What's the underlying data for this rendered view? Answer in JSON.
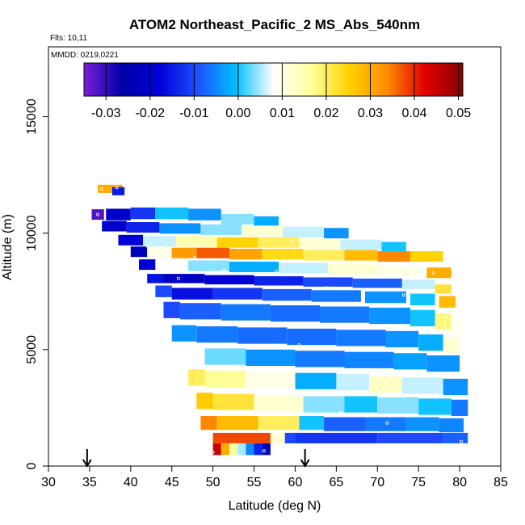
{
  "chart_data": {
    "type": "heatmap",
    "title": "ATOM2 Northeast_Pacific_2 MS_Abs_540nm",
    "flights_text": "Flts: 10,11",
    "date_text": "MMDD: 0219,0221",
    "xlabel": "Latitude (deg N)",
    "ylabel": "Altitude (m)",
    "xlim": [
      30,
      85
    ],
    "ylim": [
      0,
      18000
    ],
    "x_ticks": [
      "30",
      "35",
      "40",
      "45",
      "50",
      "55",
      "60",
      "65",
      "70",
      "75",
      "80",
      "85"
    ],
    "y_ticks": [
      "0",
      "5000",
      "10000",
      "15000"
    ],
    "colorbar": {
      "range": [
        -0.035,
        0.051
      ],
      "ticks": [
        "-0.03",
        "-0.02",
        "-0.01",
        "0.00",
        "0.01",
        "0.02",
        "0.03",
        "0.04",
        "0.05"
      ],
      "colors": [
        "#7a1fd6",
        "#0000a8",
        "#0000d8",
        "#1e50ff",
        "#00bfff",
        "#ffffff",
        "#ffff9c",
        "#ffd200",
        "#ff8c00",
        "#e10000",
        "#8b0000"
      ]
    },
    "arrows_latitude": [
      34.7,
      61.2
    ],
    "profile_top_edge": [
      [
        36.5,
        12000
      ],
      [
        39.5,
        11800
      ],
      [
        41,
        10900
      ],
      [
        48,
        10900
      ],
      [
        58,
        10400
      ],
      [
        68,
        10000
      ],
      [
        74,
        9700
      ],
      [
        79,
        9500
      ]
    ],
    "profile_bottom_edge": [
      [
        36.5,
        10800
      ],
      [
        42,
        7500
      ],
      [
        45,
        5500
      ],
      [
        48,
        3500
      ],
      [
        50,
        1800
      ],
      [
        50,
        600
      ],
      [
        57,
        600
      ],
      [
        57,
        1000
      ],
      [
        80.5,
        1000
      ]
    ],
    "cells": [
      {
        "lat": 37.5,
        "alt": 11900,
        "w": 3,
        "h": 350,
        "value": 0.03
      },
      {
        "lat": 38.5,
        "alt": 11800,
        "w": 1.5,
        "h": 350,
        "value": -0.015
      },
      {
        "lat": 36.0,
        "alt": 10800,
        "w": 1.5,
        "h": 450,
        "value": -0.032
      },
      {
        "lat": 38.5,
        "alt": 10800,
        "w": 3,
        "h": 500,
        "value": -0.02
      },
      {
        "lat": 41.5,
        "alt": 10850,
        "w": 3,
        "h": 500,
        "value": -0.012
      },
      {
        "lat": 45.0,
        "alt": 10850,
        "w": 4,
        "h": 500,
        "value": 0.0
      },
      {
        "lat": 49.0,
        "alt": 10800,
        "w": 4,
        "h": 500,
        "value": -0.004
      },
      {
        "lat": 53.0,
        "alt": 10600,
        "w": 4,
        "h": 450,
        "value": 0.004
      },
      {
        "lat": 56.5,
        "alt": 10500,
        "w": 3,
        "h": 450,
        "value": -0.002
      },
      {
        "lat": 38.0,
        "alt": 10300,
        "w": 3,
        "h": 450,
        "value": -0.02
      },
      {
        "lat": 41.5,
        "alt": 10250,
        "w": 4,
        "h": 450,
        "value": -0.014
      },
      {
        "lat": 46.0,
        "alt": 10200,
        "w": 5,
        "h": 450,
        "value": -0.004
      },
      {
        "lat": 51.0,
        "alt": 10150,
        "w": 5,
        "h": 450,
        "value": 0.004
      },
      {
        "lat": 56.0,
        "alt": 10100,
        "w": 5,
        "h": 450,
        "value": 0.012
      },
      {
        "lat": 61.0,
        "alt": 10050,
        "w": 5,
        "h": 450,
        "value": 0.006
      },
      {
        "lat": 65.0,
        "alt": 10000,
        "w": 3,
        "h": 450,
        "value": -0.004
      },
      {
        "lat": 40.0,
        "alt": 9700,
        "w": 3,
        "h": 450,
        "value": -0.018
      },
      {
        "lat": 43.5,
        "alt": 9650,
        "w": 4,
        "h": 450,
        "value": 0.006
      },
      {
        "lat": 48.0,
        "alt": 9650,
        "w": 5,
        "h": 450,
        "value": 0.015
      },
      {
        "lat": 53.0,
        "alt": 9600,
        "w": 5,
        "h": 450,
        "value": 0.025
      },
      {
        "lat": 58.0,
        "alt": 9600,
        "w": 5,
        "h": 450,
        "value": 0.02
      },
      {
        "lat": 63.0,
        "alt": 9550,
        "w": 5,
        "h": 450,
        "value": 0.012
      },
      {
        "lat": 68.0,
        "alt": 9500,
        "w": 5,
        "h": 450,
        "value": 0.006
      },
      {
        "lat": 72.0,
        "alt": 9400,
        "w": 3,
        "h": 450,
        "value": 0.0
      },
      {
        "lat": 41.0,
        "alt": 9200,
        "w": 2,
        "h": 450,
        "value": -0.022
      },
      {
        "lat": 43.5,
        "alt": 9200,
        "w": 3,
        "h": 450,
        "value": 0.01
      },
      {
        "lat": 46.5,
        "alt": 9150,
        "w": 3,
        "h": 450,
        "value": 0.032
      },
      {
        "lat": 50.0,
        "alt": 9150,
        "w": 4,
        "h": 450,
        "value": 0.037
      },
      {
        "lat": 54.0,
        "alt": 9100,
        "w": 4,
        "h": 450,
        "value": 0.031
      },
      {
        "lat": 58.5,
        "alt": 9100,
        "w": 5,
        "h": 450,
        "value": 0.024
      },
      {
        "lat": 63.5,
        "alt": 9050,
        "w": 5,
        "h": 450,
        "value": 0.02
      },
      {
        "lat": 68.0,
        "alt": 9050,
        "w": 4,
        "h": 450,
        "value": 0.028
      },
      {
        "lat": 72.0,
        "alt": 9000,
        "w": 4,
        "h": 450,
        "value": 0.034
      },
      {
        "lat": 76.0,
        "alt": 9000,
        "w": 4,
        "h": 450,
        "value": 0.025
      },
      {
        "lat": 42.0,
        "alt": 8650,
        "w": 2,
        "h": 450,
        "value": -0.018
      },
      {
        "lat": 45.0,
        "alt": 8650,
        "w": 4,
        "h": 450,
        "value": 0.008
      },
      {
        "lat": 49.5,
        "alt": 8600,
        "w": 5,
        "h": 450,
        "value": 0.004
      },
      {
        "lat": 55.0,
        "alt": 8550,
        "w": 6,
        "h": 450,
        "value": -0.002
      },
      {
        "lat": 61.0,
        "alt": 8500,
        "w": 6,
        "h": 450,
        "value": 0.006
      },
      {
        "lat": 67.0,
        "alt": 8450,
        "w": 6,
        "h": 450,
        "value": 0.012
      },
      {
        "lat": 72.5,
        "alt": 8400,
        "w": 5,
        "h": 450,
        "value": 0.01
      },
      {
        "lat": 77.5,
        "alt": 8300,
        "w": 3,
        "h": 450,
        "value": 0.03
      },
      {
        "lat": 43.0,
        "alt": 8050,
        "w": 2,
        "h": 400,
        "value": -0.016
      },
      {
        "lat": 46.5,
        "alt": 8050,
        "w": 5,
        "h": 400,
        "value": -0.022
      },
      {
        "lat": 52.0,
        "alt": 8000,
        "w": 6,
        "h": 400,
        "value": -0.018
      },
      {
        "lat": 58.0,
        "alt": 7950,
        "w": 6,
        "h": 400,
        "value": -0.014
      },
      {
        "lat": 64.0,
        "alt": 7900,
        "w": 6,
        "h": 400,
        "value": -0.01
      },
      {
        "lat": 70.0,
        "alt": 7850,
        "w": 6,
        "h": 400,
        "value": -0.008
      },
      {
        "lat": 75.0,
        "alt": 7800,
        "w": 4,
        "h": 400,
        "value": 0.006
      },
      {
        "lat": 78.0,
        "alt": 7600,
        "w": 2,
        "h": 400,
        "value": 0.022
      },
      {
        "lat": 44.0,
        "alt": 7500,
        "w": 2,
        "h": 500,
        "value": -0.01
      },
      {
        "lat": 47.5,
        "alt": 7400,
        "w": 5,
        "h": 500,
        "value": -0.016
      },
      {
        "lat": 53.0,
        "alt": 7400,
        "w": 6,
        "h": 500,
        "value": -0.012
      },
      {
        "lat": 59.0,
        "alt": 7350,
        "w": 6,
        "h": 500,
        "value": -0.008
      },
      {
        "lat": 65.0,
        "alt": 7300,
        "w": 6,
        "h": 500,
        "value": -0.006
      },
      {
        "lat": 71.0,
        "alt": 7250,
        "w": 5,
        "h": 500,
        "value": -0.004
      },
      {
        "lat": 75.5,
        "alt": 7150,
        "w": 3,
        "h": 500,
        "value": 0.0
      },
      {
        "lat": 78.5,
        "alt": 7050,
        "w": 2,
        "h": 500,
        "value": 0.028
      },
      {
        "lat": 45.0,
        "alt": 6700,
        "w": 2,
        "h": 700,
        "value": -0.01
      },
      {
        "lat": 48.5,
        "alt": 6650,
        "w": 5,
        "h": 700,
        "value": -0.008
      },
      {
        "lat": 54.0,
        "alt": 6600,
        "w": 6,
        "h": 700,
        "value": -0.006
      },
      {
        "lat": 60.0,
        "alt": 6550,
        "w": 6,
        "h": 700,
        "value": -0.007
      },
      {
        "lat": 66.0,
        "alt": 6500,
        "w": 6,
        "h": 700,
        "value": -0.006
      },
      {
        "lat": 71.5,
        "alt": 6450,
        "w": 5,
        "h": 700,
        "value": -0.004
      },
      {
        "lat": 75.5,
        "alt": 6350,
        "w": 3,
        "h": 700,
        "value": 0.0
      },
      {
        "lat": 78.0,
        "alt": 6200,
        "w": 2,
        "h": 700,
        "value": 0.018
      },
      {
        "lat": 79.8,
        "alt": 6000,
        "w": 1.5,
        "h": 800,
        "value": 0.009
      },
      {
        "lat": 46.5,
        "alt": 5700,
        "w": 3,
        "h": 700,
        "value": -0.004
      },
      {
        "lat": 50.5,
        "alt": 5650,
        "w": 5,
        "h": 700,
        "value": -0.006
      },
      {
        "lat": 56.0,
        "alt": 5600,
        "w": 6,
        "h": 700,
        "value": -0.007
      },
      {
        "lat": 62.0,
        "alt": 5550,
        "w": 6,
        "h": 700,
        "value": -0.007
      },
      {
        "lat": 68.0,
        "alt": 5500,
        "w": 6,
        "h": 700,
        "value": -0.006
      },
      {
        "lat": 73.0,
        "alt": 5450,
        "w": 4,
        "h": 700,
        "value": -0.004
      },
      {
        "lat": 76.5,
        "alt": 5300,
        "w": 3,
        "h": 700,
        "value": -0.002
      },
      {
        "lat": 79.0,
        "alt": 5200,
        "w": 2,
        "h": 700,
        "value": 0.012
      },
      {
        "lat": 47.5,
        "alt": 4800,
        "w": 3,
        "h": 700,
        "value": 0.008
      },
      {
        "lat": 51.5,
        "alt": 4700,
        "w": 5,
        "h": 700,
        "value": 0.003
      },
      {
        "lat": 57.0,
        "alt": 4650,
        "w": 6,
        "h": 700,
        "value": -0.004
      },
      {
        "lat": 63.0,
        "alt": 4600,
        "w": 6,
        "h": 700,
        "value": -0.006
      },
      {
        "lat": 69.0,
        "alt": 4550,
        "w": 6,
        "h": 700,
        "value": -0.005
      },
      {
        "lat": 74.0,
        "alt": 4500,
        "w": 4,
        "h": 700,
        "value": -0.003
      },
      {
        "lat": 78.0,
        "alt": 4400,
        "w": 4,
        "h": 700,
        "value": -0.004
      },
      {
        "lat": 48.0,
        "alt": 3800,
        "w": 2,
        "h": 700,
        "value": 0.02
      },
      {
        "lat": 51.5,
        "alt": 3750,
        "w": 5,
        "h": 700,
        "value": 0.017
      },
      {
        "lat": 57.0,
        "alt": 3700,
        "w": 6,
        "h": 700,
        "value": 0.01
      },
      {
        "lat": 62.5,
        "alt": 3650,
        "w": 5,
        "h": 700,
        "value": -0.002
      },
      {
        "lat": 67.0,
        "alt": 3600,
        "w": 4,
        "h": 700,
        "value": 0.006
      },
      {
        "lat": 71.0,
        "alt": 3500,
        "w": 4,
        "h": 700,
        "value": 0.013
      },
      {
        "lat": 75.5,
        "alt": 3450,
        "w": 5,
        "h": 700,
        "value": 0.006
      },
      {
        "lat": 79.5,
        "alt": 3400,
        "w": 3,
        "h": 700,
        "value": -0.004
      },
      {
        "lat": 49.0,
        "alt": 2800,
        "w": 2,
        "h": 700,
        "value": 0.026
      },
      {
        "lat": 52.5,
        "alt": 2750,
        "w": 5,
        "h": 700,
        "value": 0.022
      },
      {
        "lat": 58.0,
        "alt": 2700,
        "w": 6,
        "h": 700,
        "value": 0.012
      },
      {
        "lat": 63.5,
        "alt": 2650,
        "w": 5,
        "h": 700,
        "value": 0.004
      },
      {
        "lat": 68.0,
        "alt": 2650,
        "w": 4,
        "h": 700,
        "value": 0.0
      },
      {
        "lat": 72.5,
        "alt": 2600,
        "w": 5,
        "h": 700,
        "value": 0.004
      },
      {
        "lat": 77.0,
        "alt": 2550,
        "w": 4,
        "h": 700,
        "value": 0.0
      },
      {
        "lat": 80.0,
        "alt": 2500,
        "w": 2,
        "h": 700,
        "value": -0.006
      },
      {
        "lat": 49.5,
        "alt": 1850,
        "w": 2,
        "h": 600,
        "value": 0.034
      },
      {
        "lat": 53.0,
        "alt": 1850,
        "w": 5,
        "h": 600,
        "value": 0.028
      },
      {
        "lat": 58.0,
        "alt": 1850,
        "w": 5,
        "h": 600,
        "value": 0.02
      },
      {
        "lat": 62.0,
        "alt": 1850,
        "w": 3,
        "h": 600,
        "value": 0.0
      },
      {
        "lat": 66.0,
        "alt": 1800,
        "w": 5,
        "h": 600,
        "value": -0.008
      },
      {
        "lat": 71.0,
        "alt": 1800,
        "w": 5,
        "h": 600,
        "value": -0.006
      },
      {
        "lat": 75.5,
        "alt": 1800,
        "w": 4,
        "h": 600,
        "value": -0.004
      },
      {
        "lat": 79.0,
        "alt": 1750,
        "w": 3,
        "h": 600,
        "value": -0.005
      },
      {
        "lat": 53.5,
        "alt": 1200,
        "w": 7,
        "h": 450,
        "value": 0.038
      },
      {
        "lat": 58.0,
        "alt": 1200,
        "w": 2,
        "h": 450,
        "value": 0.012
      },
      {
        "lat": 59.5,
        "alt": 1200,
        "w": 1.5,
        "h": 450,
        "value": -0.01
      },
      {
        "lat": 65.0,
        "alt": 1200,
        "w": 10,
        "h": 450,
        "value": -0.012
      },
      {
        "lat": 74.0,
        "alt": 1200,
        "w": 8,
        "h": 450,
        "value": -0.01
      },
      {
        "lat": 79.5,
        "alt": 1200,
        "w": 3,
        "h": 450,
        "value": -0.008
      },
      {
        "lat": 50.5,
        "alt": 720,
        "w": 1,
        "h": 500,
        "value": 0.045
      },
      {
        "lat": 51.5,
        "alt": 720,
        "w": 1,
        "h": 500,
        "value": 0.03
      },
      {
        "lat": 52.5,
        "alt": 720,
        "w": 1,
        "h": 500,
        "value": 0.016
      },
      {
        "lat": 53.5,
        "alt": 720,
        "w": 1,
        "h": 500,
        "value": 0.005
      },
      {
        "lat": 54.5,
        "alt": 720,
        "w": 1,
        "h": 500,
        "value": -0.005
      },
      {
        "lat": 55.5,
        "alt": 720,
        "w": 1,
        "h": 500,
        "value": -0.014
      },
      {
        "lat": 56.5,
        "alt": 720,
        "w": 1,
        "h": 500,
        "value": -0.024
      }
    ],
    "markers": [
      [
        36.5,
        11900
      ],
      [
        38.3,
        11950
      ],
      [
        36,
        10800
      ],
      [
        47.8,
        8950
      ],
      [
        42,
        9450
      ],
      [
        57.7,
        8350
      ],
      [
        51.3,
        8400
      ],
      [
        45.8,
        8050
      ],
      [
        40.9,
        7850
      ],
      [
        63.8,
        7650
      ],
      [
        73.2,
        7350
      ],
      [
        60.5,
        5200
      ],
      [
        65.6,
        2300
      ],
      [
        71.2,
        1850
      ],
      [
        80.2,
        1050
      ],
      [
        76.8,
        8300
      ],
      [
        67.1,
        10000
      ],
      [
        59.6,
        9650
      ],
      [
        56.2,
        650
      ],
      [
        50,
        600
      ]
    ]
  }
}
